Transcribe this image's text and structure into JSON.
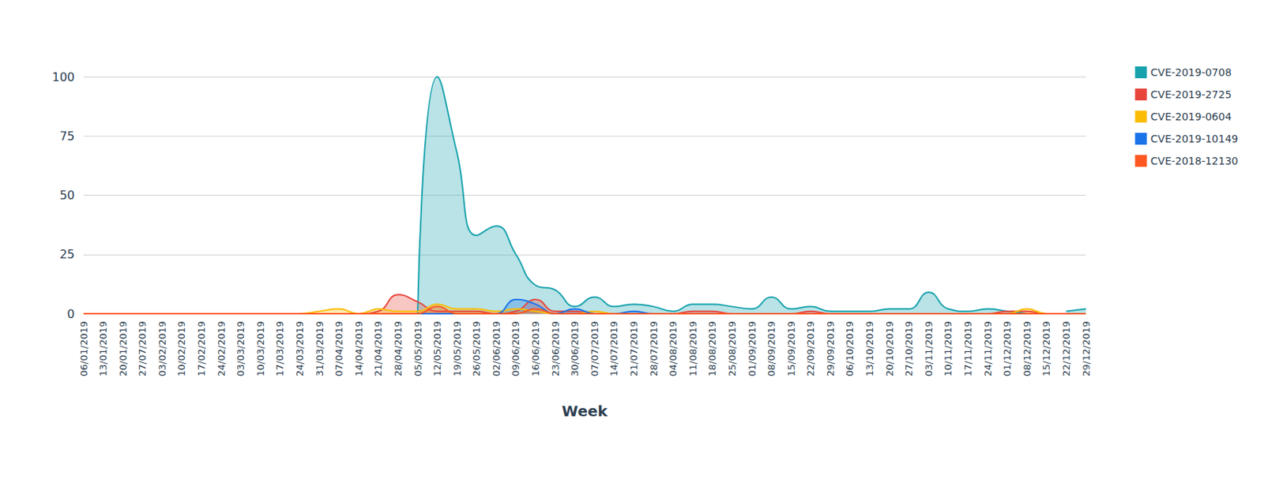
{
  "chart_data": {
    "type": "area",
    "x_label": "Week",
    "categories": [
      "06/01/2019",
      "13/01/2019",
      "20/01/2019",
      "27/07/2019",
      "03/02/2019",
      "10/02/2019",
      "17/02/2019",
      "24/02/2019",
      "03/03/2019",
      "10/03/2019",
      "17/03/2019",
      "24/03/2019",
      "31/03/2019",
      "07/04/2019",
      "14/04/2019",
      "21/04/2019",
      "28/04/2019",
      "05/05/2019",
      "12/05/2019",
      "19/05/2019",
      "26/05/2019",
      "02/06/2019",
      "09/06/2019",
      "16/06/2019",
      "23/06/2019",
      "30/06/2019",
      "07/07/2019",
      "14/07/2019",
      "21/07/2019",
      "28/07/2019",
      "04/08/2019",
      "11/08/2019",
      "18/08/2019",
      "25/08/2019",
      "01/09/2019",
      "08/09/2019",
      "15/09/2019",
      "22/09/2019",
      "29/09/2019",
      "06/10/2019",
      "13/10/2019",
      "20/10/2019",
      "27/10/2019",
      "03/11/2019",
      "10/11/2019",
      "17/11/2019",
      "24/11/2019",
      "01/12/2019",
      "08/12/2019",
      "15/12/2019",
      "22/12/2019",
      "29/12/2019"
    ],
    "series": [
      {
        "name": "CVE-2019-0708",
        "color": "#17a2ad",
        "values": [
          null,
          null,
          null,
          null,
          null,
          null,
          null,
          null,
          null,
          null,
          null,
          null,
          null,
          null,
          null,
          null,
          null,
          0,
          100,
          68,
          33,
          37,
          25,
          12,
          10,
          3,
          7,
          3,
          4,
          3,
          1,
          4,
          4,
          3,
          2,
          7,
          2,
          3,
          1,
          1,
          1,
          2,
          2,
          9,
          2,
          1,
          2,
          1,
          0,
          null,
          1,
          2
        ]
      },
      {
        "name": "CVE-2019-2725",
        "color": "#e8453c",
        "values": [
          0,
          0,
          0,
          0,
          0,
          0,
          0,
          0,
          0,
          0,
          0,
          0,
          0,
          0,
          0,
          1,
          8,
          5,
          1,
          1,
          1,
          0,
          1,
          6,
          1,
          1,
          0,
          0,
          0,
          0,
          0,
          1,
          1,
          0,
          0,
          0,
          0,
          1,
          0,
          0,
          0,
          0,
          0,
          0,
          0,
          0,
          0,
          1,
          1,
          0,
          0,
          0
        ]
      },
      {
        "name": "CVE-2019-0604",
        "color": "#fbbc05",
        "values": [
          0,
          0,
          0,
          0,
          0,
          0,
          0,
          0,
          0,
          0,
          0,
          0,
          1,
          2,
          0,
          2,
          1,
          1,
          4,
          2,
          2,
          1,
          2,
          1,
          0,
          0,
          1,
          0,
          0,
          0,
          0,
          0,
          0,
          0,
          0,
          0,
          0,
          0,
          0,
          0,
          0,
          0,
          0,
          0,
          0,
          0,
          0,
          0,
          2,
          0,
          0,
          0
        ]
      },
      {
        "name": "CVE-2019-10149",
        "color": "#1a73e8",
        "values": [
          0,
          0,
          0,
          0,
          0,
          0,
          0,
          0,
          0,
          0,
          0,
          0,
          0,
          0,
          0,
          0,
          0,
          0,
          0,
          0,
          0,
          0,
          6,
          4,
          0,
          2,
          0,
          0,
          1,
          0,
          0,
          0,
          0,
          0,
          0,
          0,
          0,
          0,
          0,
          0,
          0,
          0,
          0,
          0,
          0,
          0,
          0,
          0,
          0,
          0,
          0,
          0
        ]
      },
      {
        "name": "CVE-2018-12130",
        "color": "#ff5722",
        "values": [
          0,
          0,
          0,
          0,
          0,
          0,
          0,
          0,
          0,
          0,
          0,
          0,
          0,
          0,
          0,
          0,
          0,
          0,
          3,
          0,
          0,
          0,
          0,
          2,
          0,
          0,
          0,
          0,
          0,
          0,
          0,
          0,
          0,
          0,
          0,
          0,
          0,
          0,
          0,
          0,
          0,
          0,
          0,
          0,
          0,
          0,
          0,
          0,
          0,
          0,
          0,
          0
        ]
      }
    ],
    "ylim": [
      0,
      100
    ],
    "yticks": [
      0,
      25,
      50,
      75,
      100
    ],
    "grid": true,
    "legend": "top-right",
    "line_style": "smooth"
  }
}
